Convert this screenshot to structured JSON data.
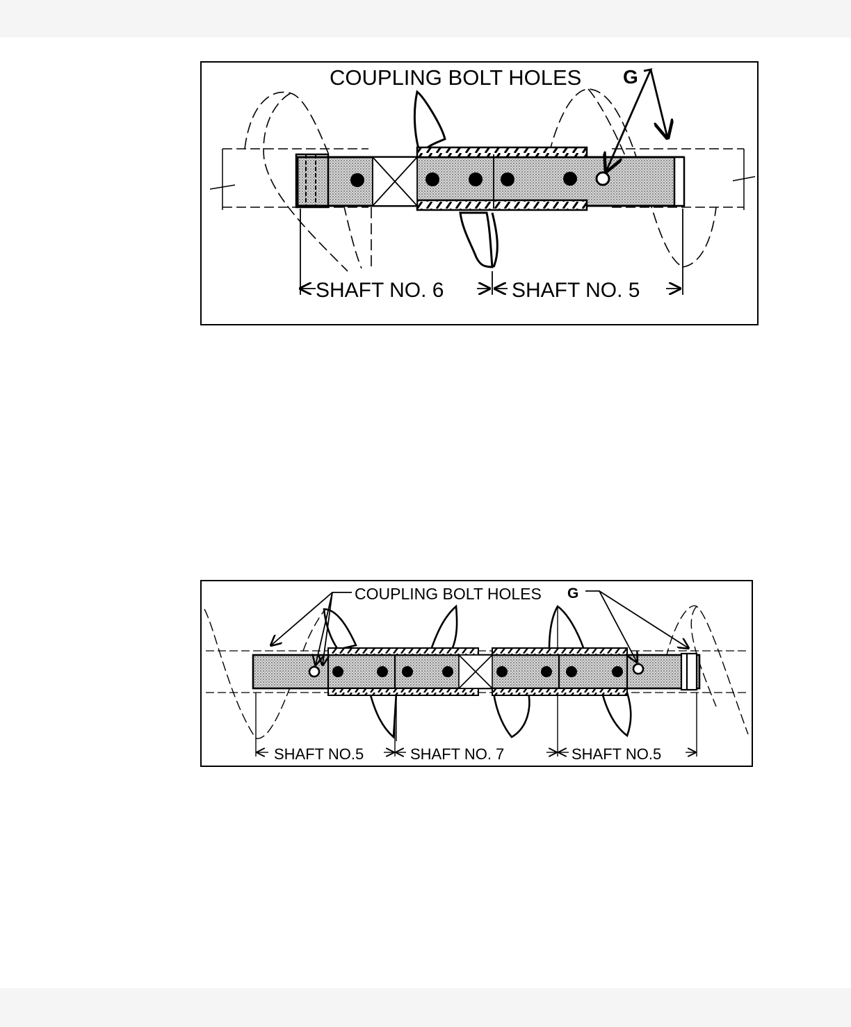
{
  "figure1": {
    "callout": "COUPLING BOLT HOLES",
    "callout_letter": "G",
    "dims": [
      {
        "from": "SHAFT NO. 6"
      },
      {
        "from": "SHAFT NO. 5"
      }
    ]
  },
  "figure2": {
    "callout": "COUPLING BOLT HOLES",
    "callout_letter": "G",
    "dims": [
      {
        "from": "SHAFT NO.5"
      },
      {
        "from": "SHAFT  NO. 7"
      },
      {
        "from": "SHAFT  NO.5"
      }
    ]
  },
  "colors": {
    "ink": "#000000",
    "shading": "#c8c8c8",
    "chrome": "#f5f5f5"
  }
}
